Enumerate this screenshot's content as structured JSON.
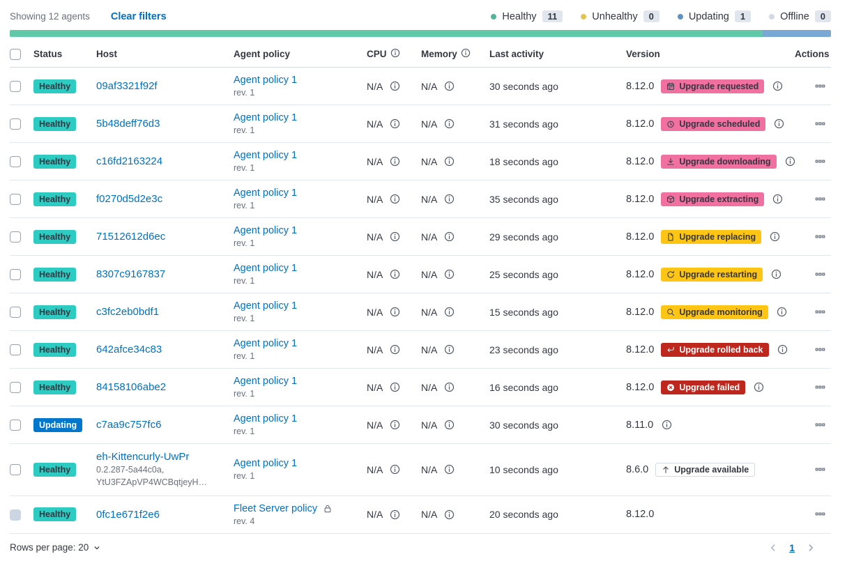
{
  "colors": {
    "link": "#0071C2",
    "text": "#343741",
    "subdued": "#69707D",
    "border": "#D3DAE6",
    "divider": "#E0E6F1",
    "count_badge_bg": "#E0E5EE",
    "healthy_badge": "#2DCBC2",
    "updating_badge": "#0077CC",
    "accent_badge": "#F0709F",
    "warning_badge": "#FEC514",
    "danger_badge": "#BD271E",
    "bar_green": "#61C9A7",
    "bar_blue": "#79A8D4",
    "dot_healthy": "#54B399",
    "dot_unhealthy": "#E3C453",
    "dot_updating": "#6092C0",
    "dot_offline": "#D3DAE6"
  },
  "toolbar": {
    "showing": "Showing 12 agents",
    "clear_filters": "Clear filters"
  },
  "legend": [
    {
      "key": "healthy",
      "label": "Healthy",
      "count": "11"
    },
    {
      "key": "unhealthy",
      "label": "Unhealthy",
      "count": "0"
    },
    {
      "key": "updating",
      "label": "Updating",
      "count": "1"
    },
    {
      "key": "offline",
      "label": "Offline",
      "count": "0"
    }
  ],
  "health_bar": {
    "healthy_percent": 91.7,
    "updating_percent": 8.3
  },
  "table": {
    "headers": {
      "status": "Status",
      "host": "Host",
      "policy": "Agent policy",
      "cpu": "CPU",
      "memory": "Memory",
      "last_activity": "Last activity",
      "version": "Version",
      "actions": "Actions"
    },
    "rows": [
      {
        "status": "Healthy",
        "status_variant": "success",
        "host": "09af3321f92f",
        "policy": "Agent policy 1",
        "policy_rev": "rev. 1",
        "cpu": "N/A",
        "memory": "N/A",
        "last_activity": "30 seconds ago",
        "version": "8.12.0",
        "upgrade": {
          "label": "Upgrade requested",
          "variant": "accent",
          "icon": "calendar-icon"
        },
        "version_info": true
      },
      {
        "status": "Healthy",
        "status_variant": "success",
        "host": "5b48deff76d3",
        "policy": "Agent policy 1",
        "policy_rev": "rev. 1",
        "cpu": "N/A",
        "memory": "N/A",
        "last_activity": "31 seconds ago",
        "version": "8.12.0",
        "upgrade": {
          "label": "Upgrade scheduled",
          "variant": "accent",
          "icon": "clock-icon"
        },
        "version_info": true
      },
      {
        "status": "Healthy",
        "status_variant": "success",
        "host": "c16fd2163224",
        "policy": "Agent policy 1",
        "policy_rev": "rev. 1",
        "cpu": "N/A",
        "memory": "N/A",
        "last_activity": "18 seconds ago",
        "version": "8.12.0",
        "upgrade": {
          "label": "Upgrade downloading",
          "variant": "accent",
          "icon": "download-icon"
        },
        "version_info": true
      },
      {
        "status": "Healthy",
        "status_variant": "success",
        "host": "f0270d5d2e3c",
        "policy": "Agent policy 1",
        "policy_rev": "rev. 1",
        "cpu": "N/A",
        "memory": "N/A",
        "last_activity": "35 seconds ago",
        "version": "8.12.0",
        "upgrade": {
          "label": "Upgrade extracting",
          "variant": "accent",
          "icon": "package-icon"
        },
        "version_info": true
      },
      {
        "status": "Healthy",
        "status_variant": "success",
        "host": "71512612d6ec",
        "policy": "Agent policy 1",
        "policy_rev": "rev. 1",
        "cpu": "N/A",
        "memory": "N/A",
        "last_activity": "29 seconds ago",
        "version": "8.12.0",
        "upgrade": {
          "label": "Upgrade replacing",
          "variant": "warning",
          "icon": "document-icon"
        },
        "version_info": true
      },
      {
        "status": "Healthy",
        "status_variant": "success",
        "host": "8307c9167837",
        "policy": "Agent policy 1",
        "policy_rev": "rev. 1",
        "cpu": "N/A",
        "memory": "N/A",
        "last_activity": "25 seconds ago",
        "version": "8.12.0",
        "upgrade": {
          "label": "Upgrade restarting",
          "variant": "warning",
          "icon": "refresh-icon"
        },
        "version_info": true
      },
      {
        "status": "Healthy",
        "status_variant": "success",
        "host": "c3fc2eb0bdf1",
        "policy": "Agent policy 1",
        "policy_rev": "rev. 1",
        "cpu": "N/A",
        "memory": "N/A",
        "last_activity": "15 seconds ago",
        "version": "8.12.0",
        "upgrade": {
          "label": "Upgrade monitoring",
          "variant": "warning",
          "icon": "inspect-icon"
        },
        "version_info": true
      },
      {
        "status": "Healthy",
        "status_variant": "success",
        "host": "642afce34c83",
        "policy": "Agent policy 1",
        "policy_rev": "rev. 1",
        "cpu": "N/A",
        "memory": "N/A",
        "last_activity": "23 seconds ago",
        "version": "8.12.0",
        "upgrade": {
          "label": "Upgrade rolled back",
          "variant": "danger",
          "icon": "return-icon"
        },
        "version_info": true
      },
      {
        "status": "Healthy",
        "status_variant": "success",
        "host": "84158106abe2",
        "policy": "Agent policy 1",
        "policy_rev": "rev. 1",
        "cpu": "N/A",
        "memory": "N/A",
        "last_activity": "16 seconds ago",
        "version": "8.12.0",
        "upgrade": {
          "label": "Upgrade failed",
          "variant": "danger",
          "icon": "cross-in-circle-icon"
        },
        "version_info": true
      },
      {
        "status": "Updating",
        "status_variant": "primary",
        "host": "c7aa9c757fc6",
        "policy": "Agent policy 1",
        "policy_rev": "rev. 1",
        "cpu": "N/A",
        "memory": "N/A",
        "last_activity": "30 seconds ago",
        "version": "8.11.0",
        "upgrade": null,
        "version_info": true
      },
      {
        "status": "Healthy",
        "status_variant": "success",
        "host": "eh-Kittencurly-UwPr",
        "host_sub": [
          "0.2.287-5a44c0a,",
          "YtU3FZApVP4WCBqtjeyH…"
        ],
        "policy": "Agent policy 1",
        "policy_rev": "rev. 1",
        "cpu": "N/A",
        "memory": "N/A",
        "last_activity": "10 seconds ago",
        "version": "8.6.0",
        "upgrade": {
          "label": "Upgrade available",
          "variant": "hollow",
          "icon": "arrow-up-icon"
        },
        "version_info": false
      },
      {
        "status": "Healthy",
        "status_variant": "success",
        "host": "0fc1e671f2e6",
        "policy": "Fleet Server policy",
        "policy_locked": true,
        "policy_rev": "rev. 4",
        "cpu": "N/A",
        "memory": "N/A",
        "last_activity": "20 seconds ago",
        "version": "8.12.0",
        "upgrade": null,
        "version_info": false,
        "checkbox_disabled": true
      }
    ]
  },
  "footer": {
    "rows_per_page": "Rows per page: 20",
    "page": "1"
  },
  "icons": {
    "calendar-icon": "calendar",
    "clock-icon": "clock",
    "download-icon": "download arrow",
    "package-icon": "package cube",
    "document-icon": "document",
    "refresh-icon": "circular refresh arrow",
    "inspect-icon": "magnifier",
    "return-icon": "return arrow",
    "cross-in-circle-icon": "x in filled circle",
    "arrow-up-icon": "up arrow",
    "info-icon": "circled i",
    "lock-icon": "padlock",
    "boxes-horizontal-icon": "three squares menu",
    "chevron-down-icon": "chevron down",
    "chevron-left-icon": "chevron left",
    "chevron-right-icon": "chevron right"
  }
}
